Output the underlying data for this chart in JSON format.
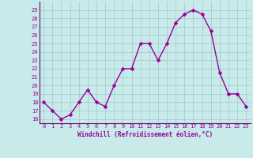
{
  "x": [
    0,
    1,
    2,
    3,
    4,
    5,
    6,
    7,
    8,
    9,
    10,
    11,
    12,
    13,
    14,
    15,
    16,
    17,
    18,
    19,
    20,
    21,
    22,
    23
  ],
  "y": [
    18,
    17,
    16,
    16.5,
    18,
    19.5,
    18,
    17.5,
    20,
    22,
    22,
    25,
    25,
    23,
    25,
    27.5,
    28.5,
    29,
    28.5,
    26.5,
    21.5,
    19,
    19,
    17.5
  ],
  "line_color": "#990099",
  "marker_color": "#990099",
  "bg_color": "#c8eaea",
  "grid_color": "#a0c8c8",
  "xlabel": "Windchill (Refroidissement éolien,°C)",
  "xlabel_color": "#990099",
  "tick_color": "#990099",
  "spine_color": "#660066",
  "ylim": [
    15.5,
    30.0
  ],
  "xlim": [
    -0.5,
    23.5
  ],
  "yticks": [
    16,
    17,
    18,
    19,
    20,
    21,
    22,
    23,
    24,
    25,
    26,
    27,
    28,
    29
  ],
  "xticks": [
    0,
    1,
    2,
    3,
    4,
    5,
    6,
    7,
    8,
    9,
    10,
    11,
    12,
    13,
    14,
    15,
    16,
    17,
    18,
    19,
    20,
    21,
    22,
    23
  ],
  "marker_size": 2.5,
  "line_width": 1.0,
  "tick_fontsize": 5.0,
  "xlabel_fontsize": 5.5
}
